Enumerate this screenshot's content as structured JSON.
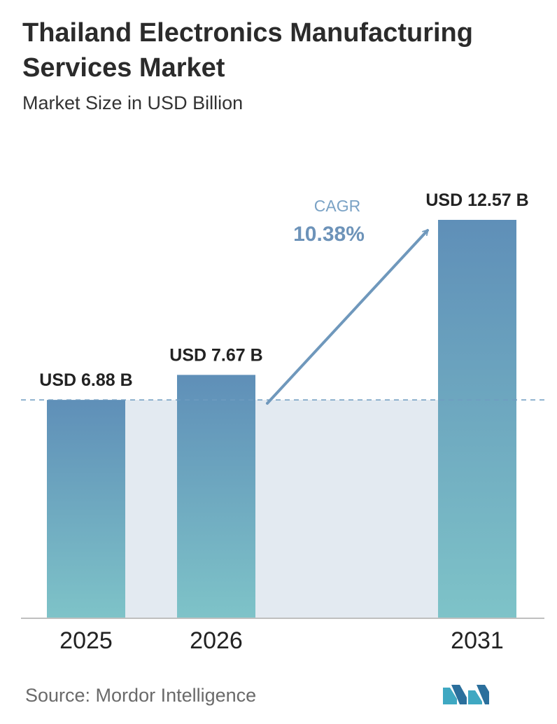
{
  "header": {
    "title": "Thailand Electronics Manufacturing Services Market",
    "subtitle": "Market Size in USD Billion"
  },
  "footer": {
    "source": "Source:  Mordor Intelligence",
    "logo_icon": "mordor-intelligence-logo"
  },
  "colors": {
    "bar_top": "#5f8fb8",
    "bar_bottom": "#7ec3c8",
    "band": "#e3eaf1",
    "arrow": "#6f98bc",
    "cagr_label": "#7aa2c5",
    "cagr_value": "#6d93b9",
    "dashed_line": "#6f9cc0",
    "axis": "#bfbfbf",
    "text_dark": "#222222"
  },
  "chart_data": {
    "type": "bar",
    "categories": [
      "2025",
      "2026",
      "2031"
    ],
    "values": [
      6.88,
      7.67,
      12.57
    ],
    "value_labels": [
      "USD 6.88 B",
      "USD 7.67 B",
      "USD 12.57 B"
    ],
    "title": "Thailand Electronics Manufacturing Services Market",
    "subtitle": "Market Size in USD Billion",
    "xlabel": "",
    "ylabel": "",
    "ylim": [
      0,
      12.57
    ],
    "grid": false,
    "baseline_dashed_at": 6.88,
    "cagr": {
      "label": "CAGR",
      "value": "10.38%"
    }
  }
}
